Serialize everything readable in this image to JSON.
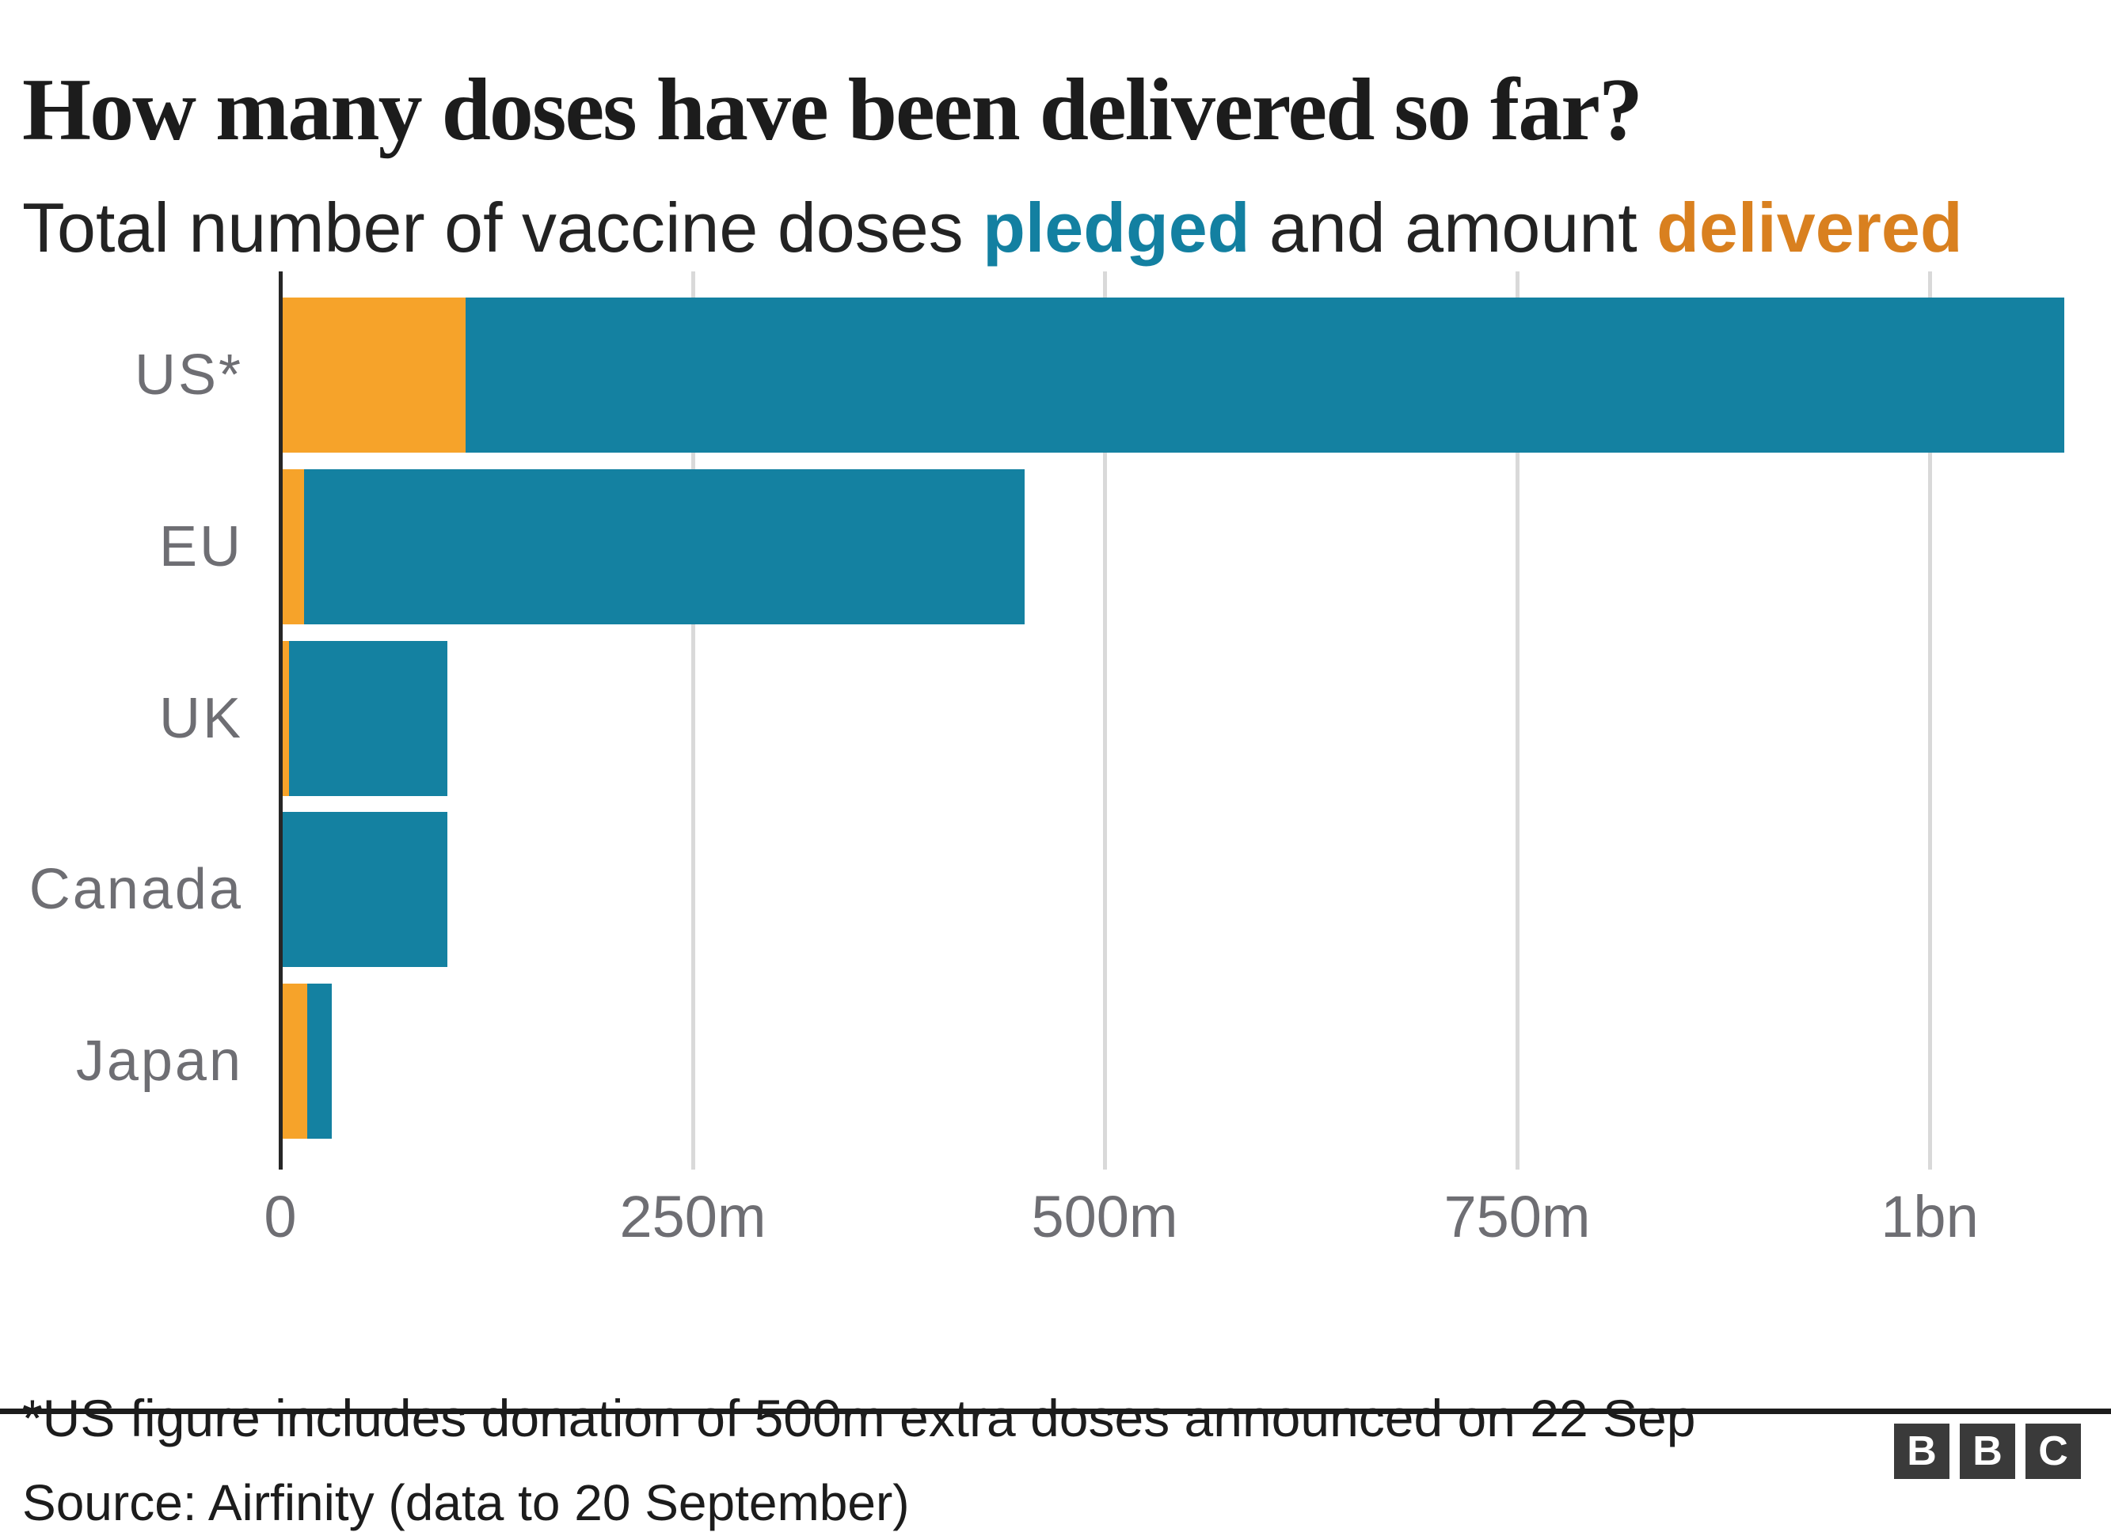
{
  "header": {
    "title": "How many doses have been delivered so far?",
    "subtitle": {
      "prefix": "Total number of vaccine doses ",
      "pledged_word": "pledged",
      "middle": " and amount ",
      "delivered_word": "delivered"
    }
  },
  "chart_data": {
    "type": "bar",
    "orientation": "horizontal",
    "categories": [
      "US*",
      "EU",
      "UK",
      "Canada",
      "Japan"
    ],
    "series": [
      {
        "name": "pledged",
        "color": "#1481A1",
        "values_millions": [
          1080,
          450,
          100,
          100,
          30
        ]
      },
      {
        "name": "delivered",
        "color": "#F6A32A",
        "values_millions": [
          111,
          13,
          4,
          0,
          15
        ]
      }
    ],
    "x_axis": {
      "ticks": [
        {
          "value_millions": 0,
          "label": "0"
        },
        {
          "value_millions": 250,
          "label": "250m"
        },
        {
          "value_millions": 500,
          "label": "500m"
        },
        {
          "value_millions": 750,
          "label": "750m"
        },
        {
          "value_millions": 1000,
          "label": "1bn"
        }
      ],
      "max_millions": 1110
    },
    "grid": "vertical-lines",
    "legend": "inline-in-subtitle",
    "bar_style": "delivered bar overlaid at start of pledged bar"
  },
  "footnote": "*US figure includes donation of 500m extra doses announced on 22 Sep",
  "source": "Source: Airfinity (data to 20 September)",
  "branding": {
    "logo_letters": [
      "B",
      "B",
      "C"
    ],
    "logo_block_color": "#3A3A3A"
  },
  "colors": {
    "pledged_text": "#1380A1",
    "delivered_text": "#D9801F",
    "axis_label": "#6E6E73",
    "gridline": "#D9D9D9",
    "axis_line": "#262626",
    "divider": "#1c1c1c",
    "title_text": "#1C1C1C",
    "background": "#FFFFFF"
  }
}
